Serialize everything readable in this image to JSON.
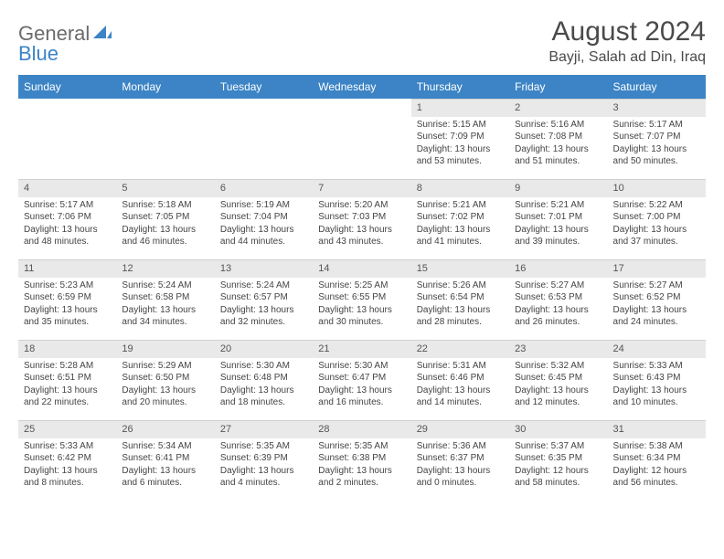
{
  "brand": {
    "part1": "General",
    "part2": "Blue"
  },
  "title": "August 2024",
  "location": "Bayji, Salah ad Din, Iraq",
  "colors": {
    "header_bg": "#3c84c5",
    "header_text": "#ffffff",
    "daynum_bg": "#e9e9e9",
    "page_bg": "#ffffff",
    "text": "#333333",
    "brand_gray": "#6b6b6b",
    "brand_blue": "#3c84c5"
  },
  "weekdays": [
    "Sunday",
    "Monday",
    "Tuesday",
    "Wednesday",
    "Thursday",
    "Friday",
    "Saturday"
  ],
  "weeks": [
    [
      {
        "n": "",
        "lines": []
      },
      {
        "n": "",
        "lines": []
      },
      {
        "n": "",
        "lines": []
      },
      {
        "n": "",
        "lines": []
      },
      {
        "n": "1",
        "lines": [
          "Sunrise: 5:15 AM",
          "Sunset: 7:09 PM",
          "Daylight: 13 hours and 53 minutes."
        ]
      },
      {
        "n": "2",
        "lines": [
          "Sunrise: 5:16 AM",
          "Sunset: 7:08 PM",
          "Daylight: 13 hours and 51 minutes."
        ]
      },
      {
        "n": "3",
        "lines": [
          "Sunrise: 5:17 AM",
          "Sunset: 7:07 PM",
          "Daylight: 13 hours and 50 minutes."
        ]
      }
    ],
    [
      {
        "n": "4",
        "lines": [
          "Sunrise: 5:17 AM",
          "Sunset: 7:06 PM",
          "Daylight: 13 hours and 48 minutes."
        ]
      },
      {
        "n": "5",
        "lines": [
          "Sunrise: 5:18 AM",
          "Sunset: 7:05 PM",
          "Daylight: 13 hours and 46 minutes."
        ]
      },
      {
        "n": "6",
        "lines": [
          "Sunrise: 5:19 AM",
          "Sunset: 7:04 PM",
          "Daylight: 13 hours and 44 minutes."
        ]
      },
      {
        "n": "7",
        "lines": [
          "Sunrise: 5:20 AM",
          "Sunset: 7:03 PM",
          "Daylight: 13 hours and 43 minutes."
        ]
      },
      {
        "n": "8",
        "lines": [
          "Sunrise: 5:21 AM",
          "Sunset: 7:02 PM",
          "Daylight: 13 hours and 41 minutes."
        ]
      },
      {
        "n": "9",
        "lines": [
          "Sunrise: 5:21 AM",
          "Sunset: 7:01 PM",
          "Daylight: 13 hours and 39 minutes."
        ]
      },
      {
        "n": "10",
        "lines": [
          "Sunrise: 5:22 AM",
          "Sunset: 7:00 PM",
          "Daylight: 13 hours and 37 minutes."
        ]
      }
    ],
    [
      {
        "n": "11",
        "lines": [
          "Sunrise: 5:23 AM",
          "Sunset: 6:59 PM",
          "Daylight: 13 hours and 35 minutes."
        ]
      },
      {
        "n": "12",
        "lines": [
          "Sunrise: 5:24 AM",
          "Sunset: 6:58 PM",
          "Daylight: 13 hours and 34 minutes."
        ]
      },
      {
        "n": "13",
        "lines": [
          "Sunrise: 5:24 AM",
          "Sunset: 6:57 PM",
          "Daylight: 13 hours and 32 minutes."
        ]
      },
      {
        "n": "14",
        "lines": [
          "Sunrise: 5:25 AM",
          "Sunset: 6:55 PM",
          "Daylight: 13 hours and 30 minutes."
        ]
      },
      {
        "n": "15",
        "lines": [
          "Sunrise: 5:26 AM",
          "Sunset: 6:54 PM",
          "Daylight: 13 hours and 28 minutes."
        ]
      },
      {
        "n": "16",
        "lines": [
          "Sunrise: 5:27 AM",
          "Sunset: 6:53 PM",
          "Daylight: 13 hours and 26 minutes."
        ]
      },
      {
        "n": "17",
        "lines": [
          "Sunrise: 5:27 AM",
          "Sunset: 6:52 PM",
          "Daylight: 13 hours and 24 minutes."
        ]
      }
    ],
    [
      {
        "n": "18",
        "lines": [
          "Sunrise: 5:28 AM",
          "Sunset: 6:51 PM",
          "Daylight: 13 hours and 22 minutes."
        ]
      },
      {
        "n": "19",
        "lines": [
          "Sunrise: 5:29 AM",
          "Sunset: 6:50 PM",
          "Daylight: 13 hours and 20 minutes."
        ]
      },
      {
        "n": "20",
        "lines": [
          "Sunrise: 5:30 AM",
          "Sunset: 6:48 PM",
          "Daylight: 13 hours and 18 minutes."
        ]
      },
      {
        "n": "21",
        "lines": [
          "Sunrise: 5:30 AM",
          "Sunset: 6:47 PM",
          "Daylight: 13 hours and 16 minutes."
        ]
      },
      {
        "n": "22",
        "lines": [
          "Sunrise: 5:31 AM",
          "Sunset: 6:46 PM",
          "Daylight: 13 hours and 14 minutes."
        ]
      },
      {
        "n": "23",
        "lines": [
          "Sunrise: 5:32 AM",
          "Sunset: 6:45 PM",
          "Daylight: 13 hours and 12 minutes."
        ]
      },
      {
        "n": "24",
        "lines": [
          "Sunrise: 5:33 AM",
          "Sunset: 6:43 PM",
          "Daylight: 13 hours and 10 minutes."
        ]
      }
    ],
    [
      {
        "n": "25",
        "lines": [
          "Sunrise: 5:33 AM",
          "Sunset: 6:42 PM",
          "Daylight: 13 hours and 8 minutes."
        ]
      },
      {
        "n": "26",
        "lines": [
          "Sunrise: 5:34 AM",
          "Sunset: 6:41 PM",
          "Daylight: 13 hours and 6 minutes."
        ]
      },
      {
        "n": "27",
        "lines": [
          "Sunrise: 5:35 AM",
          "Sunset: 6:39 PM",
          "Daylight: 13 hours and 4 minutes."
        ]
      },
      {
        "n": "28",
        "lines": [
          "Sunrise: 5:35 AM",
          "Sunset: 6:38 PM",
          "Daylight: 13 hours and 2 minutes."
        ]
      },
      {
        "n": "29",
        "lines": [
          "Sunrise: 5:36 AM",
          "Sunset: 6:37 PM",
          "Daylight: 13 hours and 0 minutes."
        ]
      },
      {
        "n": "30",
        "lines": [
          "Sunrise: 5:37 AM",
          "Sunset: 6:35 PM",
          "Daylight: 12 hours and 58 minutes."
        ]
      },
      {
        "n": "31",
        "lines": [
          "Sunrise: 5:38 AM",
          "Sunset: 6:34 PM",
          "Daylight: 12 hours and 56 minutes."
        ]
      }
    ]
  ]
}
